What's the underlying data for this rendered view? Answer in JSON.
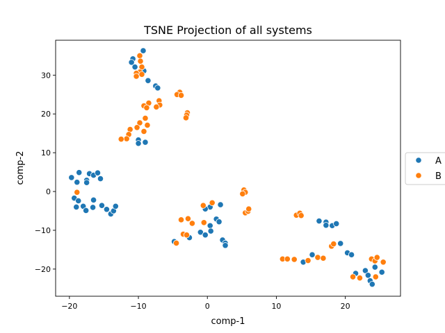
{
  "chart_data": {
    "type": "scatter",
    "title": "TSNE Projection of all systems",
    "xlabel": "comp-1",
    "ylabel": "comp-2",
    "xlim": [
      -22,
      28
    ],
    "ylim": [
      -27,
      39
    ],
    "xticks": [
      -20,
      -10,
      0,
      10,
      20
    ],
    "yticks": [
      -20,
      -10,
      0,
      10,
      20,
      30
    ],
    "grid": false,
    "legend_placement": "outside right, vertically centered",
    "series": [
      {
        "name": "A",
        "color": "#1f77b4",
        "points": [
          [
            -10.8,
            34.2
          ],
          [
            -9.3,
            36.3
          ],
          [
            -11.0,
            33.3
          ],
          [
            -10.5,
            32.1
          ],
          [
            -9.2,
            31.1
          ],
          [
            -8.6,
            28.6
          ],
          [
            -7.5,
            27.2
          ],
          [
            -7.2,
            26.7
          ],
          [
            -10.0,
            13.3
          ],
          [
            -10.0,
            12.4
          ],
          [
            -9.0,
            12.7
          ],
          [
            -19.7,
            3.6
          ],
          [
            -18.6,
            4.9
          ],
          [
            -17.1,
            4.6
          ],
          [
            -16.5,
            4.2
          ],
          [
            -15.9,
            4.8
          ],
          [
            -15.5,
            3.3
          ],
          [
            -17.5,
            2.9
          ],
          [
            -17.5,
            2.3
          ],
          [
            -18.9,
            2.4
          ],
          [
            -19.3,
            -1.7
          ],
          [
            -18.7,
            -2.4
          ],
          [
            -16.5,
            -2.2
          ],
          [
            -19.0,
            -4.0
          ],
          [
            -18.0,
            -3.8
          ],
          [
            -17.6,
            -4.9
          ],
          [
            -16.6,
            -4.1
          ],
          [
            -15.3,
            -3.6
          ],
          [
            -14.6,
            -4.6
          ],
          [
            -14.0,
            -5.8
          ],
          [
            -13.6,
            -5.0
          ],
          [
            -13.3,
            -3.8
          ],
          [
            -4.8,
            -12.9
          ],
          [
            -2.6,
            -11.9
          ],
          [
            0.4,
            -4.0
          ],
          [
            -0.3,
            -4.5
          ],
          [
            0.4,
            -8.8
          ],
          [
            -1.0,
            -10.5
          ],
          [
            -0.3,
            -11.2
          ],
          [
            0.5,
            -10.2
          ],
          [
            1.3,
            -7.1
          ],
          [
            1.7,
            -7.8
          ],
          [
            1.9,
            -3.4
          ],
          [
            2.2,
            -12.5
          ],
          [
            2.6,
            -13.3
          ],
          [
            2.6,
            -13.9
          ],
          [
            13.9,
            -18.2
          ],
          [
            15.2,
            -16.3
          ],
          [
            16.2,
            -7.6
          ],
          [
            17.2,
            -7.9
          ],
          [
            17.2,
            -8.7
          ],
          [
            18.1,
            -8.8
          ],
          [
            18.7,
            -8.3
          ],
          [
            19.3,
            -13.4
          ],
          [
            20.3,
            -15.8
          ],
          [
            20.9,
            -16.3
          ],
          [
            21.5,
            -21.1
          ],
          [
            22.9,
            -20.4
          ],
          [
            23.3,
            -21.6
          ],
          [
            23.6,
            -23.0
          ],
          [
            23.9,
            -23.9
          ],
          [
            24.3,
            -19.5
          ],
          [
            25.3,
            -20.8
          ]
        ]
      },
      {
        "name": "B",
        "color": "#ff7f0e",
        "points": [
          [
            -9.8,
            35.0
          ],
          [
            -9.7,
            33.6
          ],
          [
            -9.5,
            32.1
          ],
          [
            -9.8,
            30.8
          ],
          [
            -10.3,
            30.5
          ],
          [
            -10.3,
            29.7
          ],
          [
            -9.5,
            30.2
          ],
          [
            -4.0,
            25.6
          ],
          [
            -4.4,
            25.0
          ],
          [
            -3.8,
            24.8
          ],
          [
            -2.9,
            20.3
          ],
          [
            -3.0,
            19.7
          ],
          [
            -3.1,
            19.0
          ],
          [
            -7.0,
            23.4
          ],
          [
            -6.9,
            22.3
          ],
          [
            -7.4,
            21.8
          ],
          [
            -8.5,
            22.8
          ],
          [
            -9.2,
            22.1
          ],
          [
            -8.8,
            21.6
          ],
          [
            -9.0,
            18.9
          ],
          [
            -9.8,
            17.7
          ],
          [
            -8.7,
            17.1
          ],
          [
            -9.2,
            15.5
          ],
          [
            -10.2,
            16.5
          ],
          [
            -11.2,
            16.0
          ],
          [
            -11.4,
            14.7
          ],
          [
            -11.7,
            13.6
          ],
          [
            -12.5,
            13.5
          ],
          [
            -18.9,
            -0.2
          ],
          [
            -3.8,
            -7.3
          ],
          [
            -2.8,
            -7.0
          ],
          [
            -2.2,
            -8.2
          ],
          [
            -3.5,
            -11.0
          ],
          [
            -3.0,
            -11.2
          ],
          [
            -4.5,
            -13.3
          ],
          [
            -0.6,
            -3.6
          ],
          [
            0.7,
            -2.9
          ],
          [
            -0.5,
            -8.0
          ],
          [
            5.3,
            0.4
          ],
          [
            5.5,
            -0.2
          ],
          [
            5.1,
            -0.6
          ],
          [
            5.5,
            -5.5
          ],
          [
            5.9,
            -5.1
          ],
          [
            6.0,
            -4.5
          ],
          [
            12.9,
            -6.1
          ],
          [
            13.4,
            -5.6
          ],
          [
            13.6,
            -6.2
          ],
          [
            10.9,
            -17.4
          ],
          [
            11.6,
            -17.4
          ],
          [
            12.6,
            -17.5
          ],
          [
            14.6,
            -17.8
          ],
          [
            16.0,
            -17.0
          ],
          [
            16.8,
            -17.2
          ],
          [
            18.0,
            -14.1
          ],
          [
            18.3,
            -13.5
          ],
          [
            21.1,
            -22.0
          ],
          [
            22.1,
            -22.3
          ],
          [
            23.8,
            -17.4
          ],
          [
            24.3,
            -17.9
          ],
          [
            24.6,
            -17.0
          ],
          [
            24.4,
            -22.0
          ],
          [
            25.5,
            -18.2
          ]
        ]
      }
    ]
  }
}
